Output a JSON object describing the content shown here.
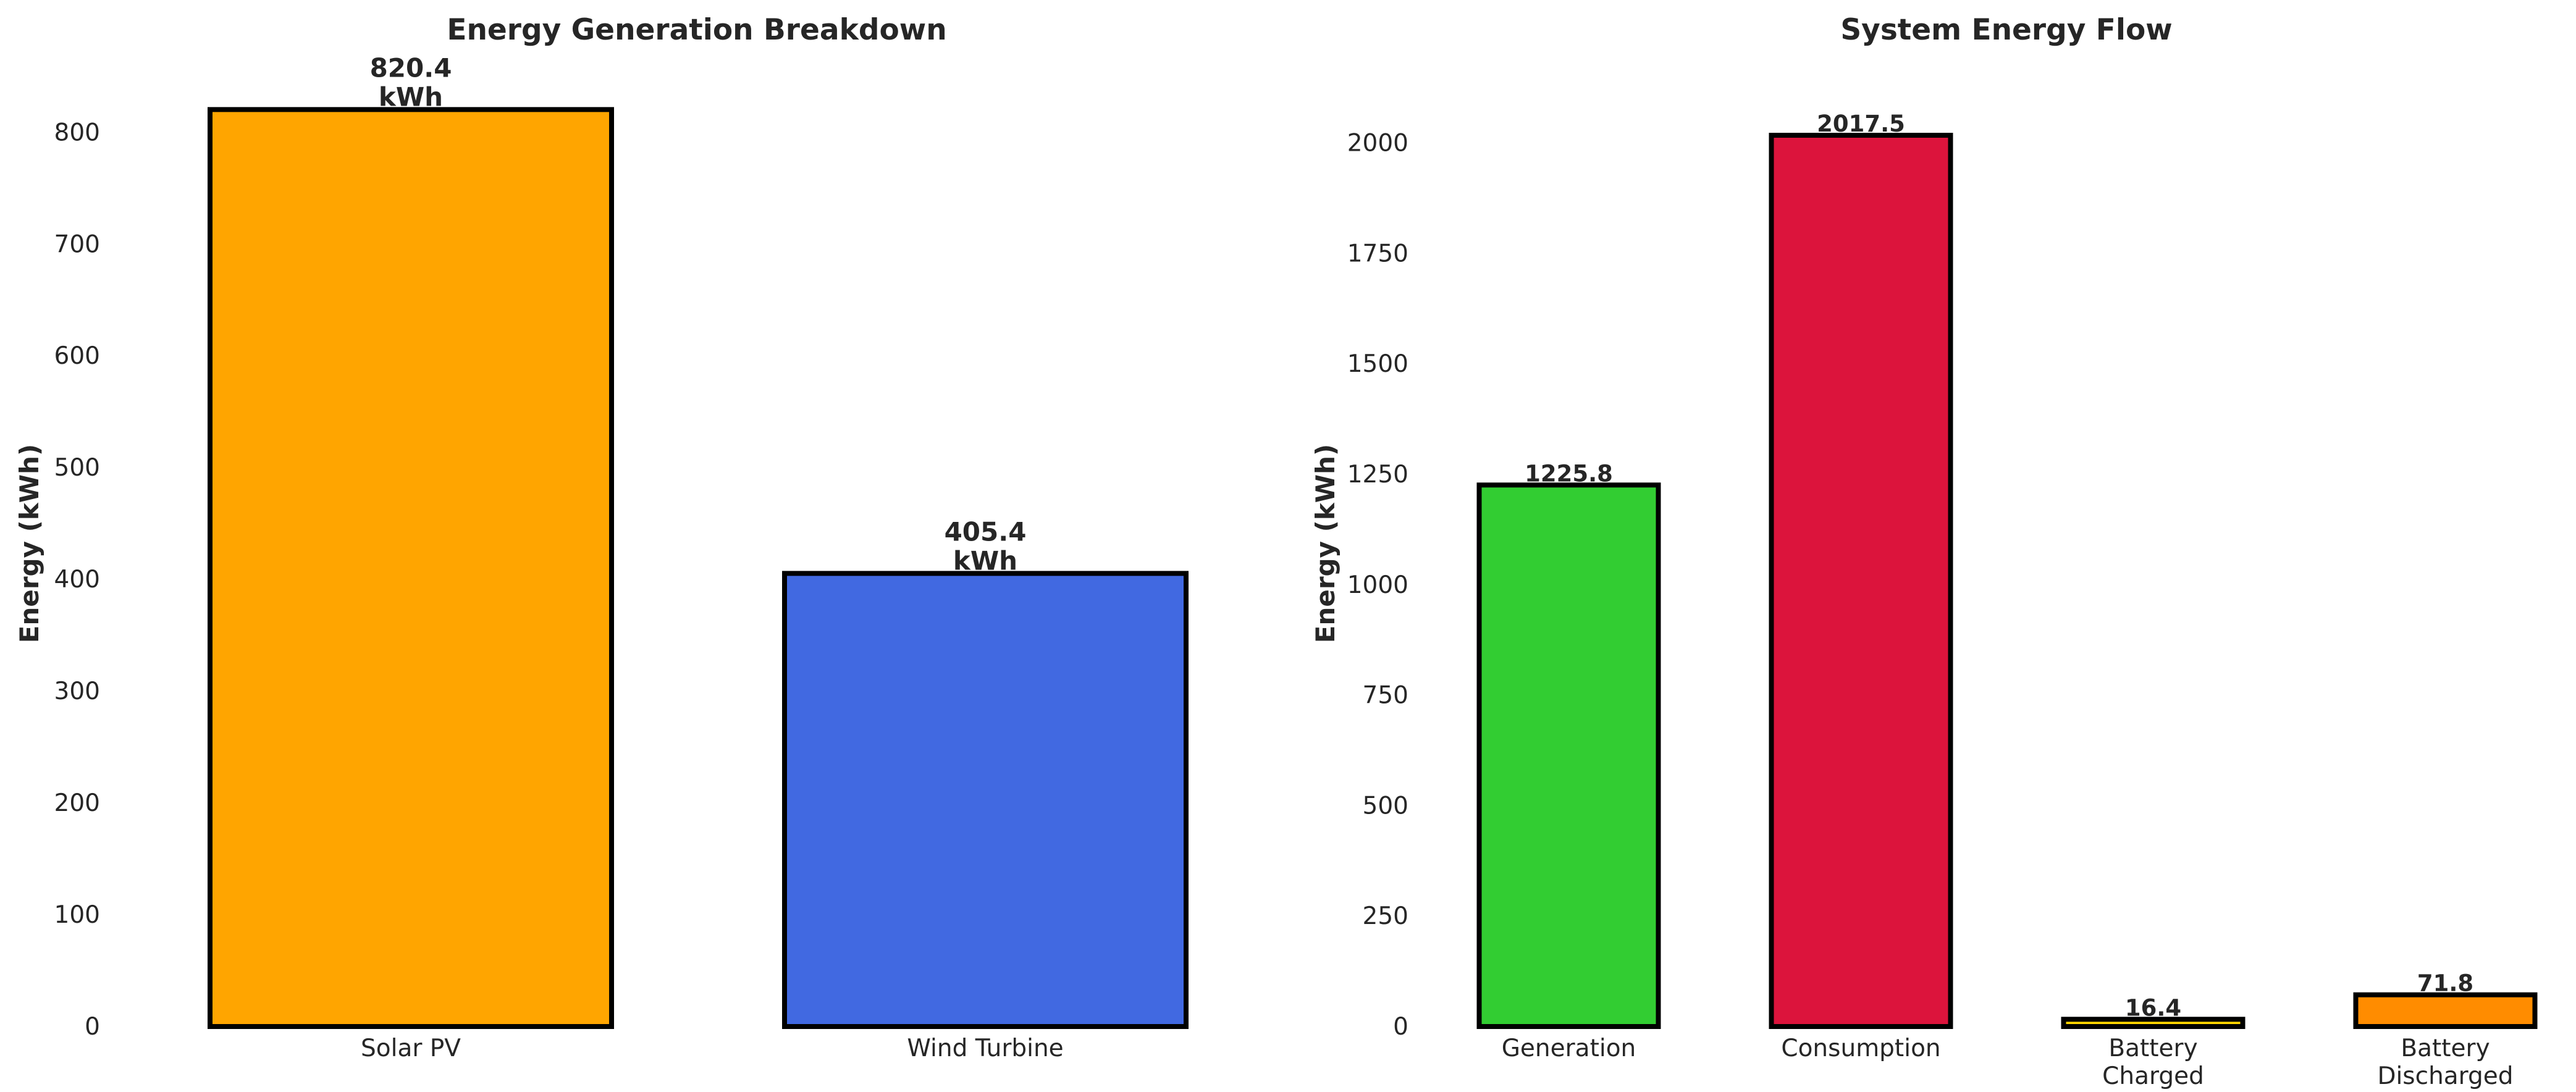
{
  "chart_data": [
    {
      "type": "bar",
      "title": "Energy Generation Breakdown",
      "xlabel": "",
      "ylabel": "Energy (kWh)",
      "categories": [
        "Solar PV",
        "Wind Turbine"
      ],
      "values": [
        820.4,
        405.4
      ],
      "value_labels": [
        "820.4\nkWh",
        "405.4\nkWh"
      ],
      "colors": [
        "#FFA500",
        "#4169E1"
      ],
      "edge_color": "#000000",
      "ylim": [
        0,
        830
      ],
      "yticks": [
        0,
        100,
        200,
        300,
        400,
        500,
        600,
        700,
        800
      ],
      "grid": false,
      "legend": "none"
    },
    {
      "type": "bar",
      "title": "System Energy Flow",
      "xlabel": "",
      "ylabel": "Energy (kWh)",
      "categories": [
        "Generation",
        "Consumption",
        "Battery\nCharged",
        "Battery\nDischarged"
      ],
      "values": [
        1225.8,
        2017.5,
        16.4,
        71.8
      ],
      "value_labels": [
        "1225.8",
        "2017.5",
        "16.4",
        "71.8"
      ],
      "colors": [
        "#32CD32",
        "#DC143C",
        "#FFD700",
        "#FF8C00"
      ],
      "edge_color": "#000000",
      "ylim": [
        0,
        2100
      ],
      "yticks": [
        0,
        250,
        500,
        750,
        1000,
        1250,
        1500,
        1750,
        2000
      ],
      "grid": false,
      "legend": "none"
    }
  ]
}
